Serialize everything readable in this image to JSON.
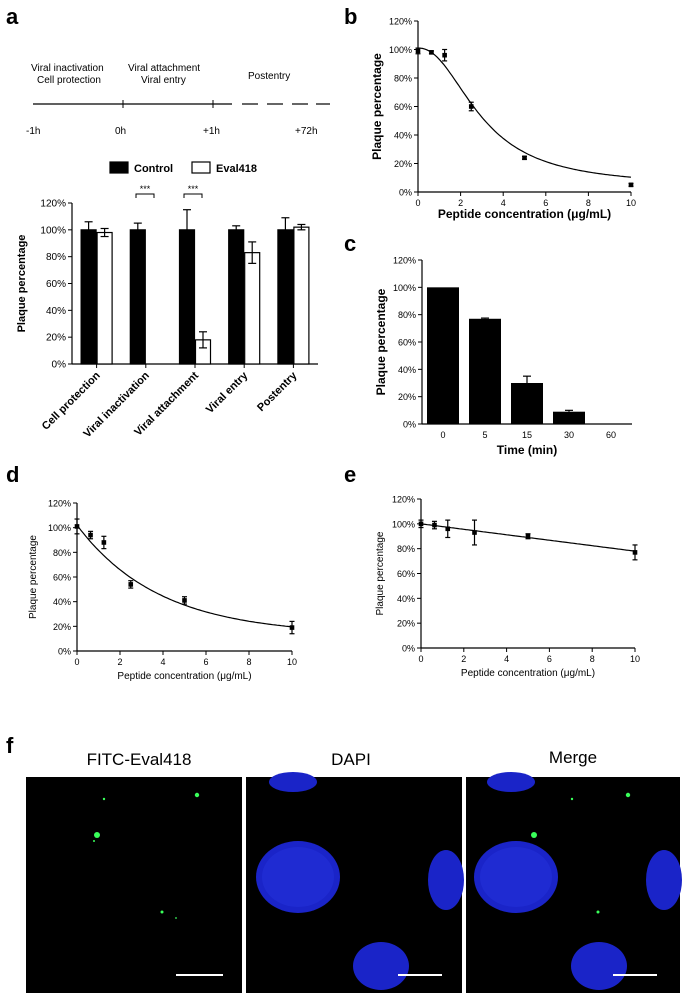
{
  "panels": {
    "a": {
      "label": "a",
      "timeline": {
        "phases": [
          "Viral inactivation",
          "Cell protection",
          "Viral attachment",
          "Viral entry",
          "Postentry"
        ],
        "ticks": [
          "-1h",
          "0h",
          "+1h",
          "+72h"
        ]
      },
      "significance": [
        "***",
        "***"
      ]
    },
    "b": {
      "label": "b"
    },
    "c": {
      "label": "c"
    },
    "d": {
      "label": "d"
    },
    "e": {
      "label": "e"
    },
    "f": {
      "label": "f",
      "images": [
        "FITC-Eval418",
        "DAPI",
        "Merge"
      ]
    }
  },
  "colors": {
    "bar": "#000000",
    "open_bar": "#ffffff",
    "nuclei": "#1a24c8",
    "fitc": "#39ff5a",
    "micro_bg": "#000000"
  },
  "chart_data": [
    {
      "id": "a",
      "type": "bar",
      "categories": [
        "Cell protection",
        "Viral inactivation",
        "Viral attachment",
        "Viral entry",
        "Postentry"
      ],
      "series": [
        {
          "name": "Control",
          "values": [
            100,
            100,
            100,
            100,
            100
          ],
          "errors": [
            6,
            5,
            15,
            3,
            9
          ]
        },
        {
          "name": "Eval418",
          "values": [
            98,
            0,
            18,
            83,
            102
          ],
          "errors": [
            3,
            0,
            6,
            8,
            2
          ]
        }
      ],
      "ylabel": "Plaque percentage",
      "ylim": [
        0,
        120
      ],
      "yticks": [
        "0%",
        "20%",
        "40%",
        "60%",
        "80%",
        "100%",
        "120%"
      ],
      "legend": "top"
    },
    {
      "id": "b",
      "type": "scatter",
      "x": [
        0,
        0.63,
        1.25,
        2.5,
        5,
        10
      ],
      "y": [
        99,
        98,
        96,
        60,
        24,
        5
      ],
      "errors": [
        2,
        1,
        4,
        3,
        1,
        1
      ],
      "fit": "dose-response",
      "xlabel": "Peptide concentration (μg/mL)",
      "ylabel": "Plaque percentage",
      "xlim": [
        0,
        10
      ],
      "ylim": [
        0,
        120
      ],
      "xticks": [
        "0",
        "2",
        "4",
        "6",
        "8",
        "10"
      ],
      "yticks": [
        "0%",
        "20%",
        "40%",
        "60%",
        "80%",
        "100%",
        "120%"
      ]
    },
    {
      "id": "c",
      "type": "bar",
      "categories": [
        "0",
        "5",
        "15",
        "30",
        "60"
      ],
      "values": [
        100,
        77,
        30,
        9,
        0
      ],
      "errors": [
        0,
        0.5,
        5,
        1,
        0
      ],
      "xlabel": "Time (min)",
      "ylabel": "Plaque percentage",
      "ylim": [
        0,
        120
      ],
      "yticks": [
        "0%",
        "20%",
        "40%",
        "60%",
        "80%",
        "100%",
        "120%"
      ]
    },
    {
      "id": "d",
      "type": "scatter",
      "x": [
        0,
        0.63,
        1.25,
        2.5,
        5,
        10
      ],
      "y": [
        101,
        94,
        88,
        54,
        41,
        19
      ],
      "errors": [
        6,
        3,
        5,
        3,
        3,
        5
      ],
      "fit": "exponential-decay",
      "xlabel": "Peptide concentration (μg/mL)",
      "ylabel": "Plaque percentage",
      "xlim": [
        0,
        10
      ],
      "ylim": [
        0,
        120
      ],
      "xticks": [
        "0",
        "2",
        "4",
        "6",
        "8",
        "10"
      ],
      "yticks": [
        "0%",
        "20%",
        "40%",
        "60%",
        "80%",
        "100%",
        "120%"
      ]
    },
    {
      "id": "e",
      "type": "scatter",
      "x": [
        0,
        0.63,
        1.25,
        2.5,
        5,
        10
      ],
      "y": [
        100,
        99,
        96,
        93,
        90,
        77
      ],
      "errors": [
        3,
        3,
        7,
        10,
        2,
        6
      ],
      "fit": "linear",
      "xlabel": "Peptide concentration (μg/mL)",
      "ylabel": "Plaque percentage",
      "xlim": [
        0,
        10
      ],
      "ylim": [
        0,
        120
      ],
      "xticks": [
        "0",
        "2",
        "4",
        "6",
        "8",
        "10"
      ],
      "yticks": [
        "0%",
        "20%",
        "40%",
        "60%",
        "80%",
        "100%",
        "120%"
      ]
    }
  ]
}
